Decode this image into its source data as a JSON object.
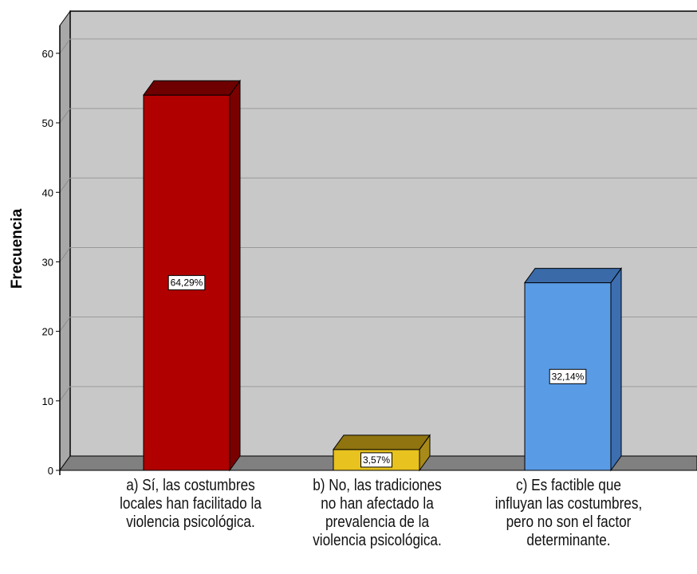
{
  "chart_data": {
    "type": "bar",
    "title": "",
    "xlabel": "",
    "ylabel": "Frecuencia",
    "ylim": [
      0,
      64
    ],
    "yticks": [
      0,
      10,
      20,
      30,
      40,
      50,
      60
    ],
    "grid": true,
    "categories": [
      "a) Sí, las costumbres\nlocales han facilitado la\nviolencia psicológica.",
      "b) No, las tradiciones\nno han afectado la\nprevalencia de la\nviolencia psicológica.",
      "c) Es factible que\ninfluyan las costumbres,\npero no son el factor\ndeterminante."
    ],
    "values": [
      54,
      3,
      27
    ],
    "data_labels": [
      "64,29%",
      "3,57%",
      "32,14%"
    ],
    "colors": {
      "bars": [
        "#b00000",
        "#e8c21e",
        "#5a9be6"
      ],
      "bar_tops": [
        "#6e0000",
        "#8f7410",
        "#3a6aa8"
      ],
      "bar_sides": [
        "#7a0000",
        "#a88a18",
        "#3d6fb0"
      ],
      "plot_background": "#c8c8c8",
      "floor": "#808080"
    }
  }
}
